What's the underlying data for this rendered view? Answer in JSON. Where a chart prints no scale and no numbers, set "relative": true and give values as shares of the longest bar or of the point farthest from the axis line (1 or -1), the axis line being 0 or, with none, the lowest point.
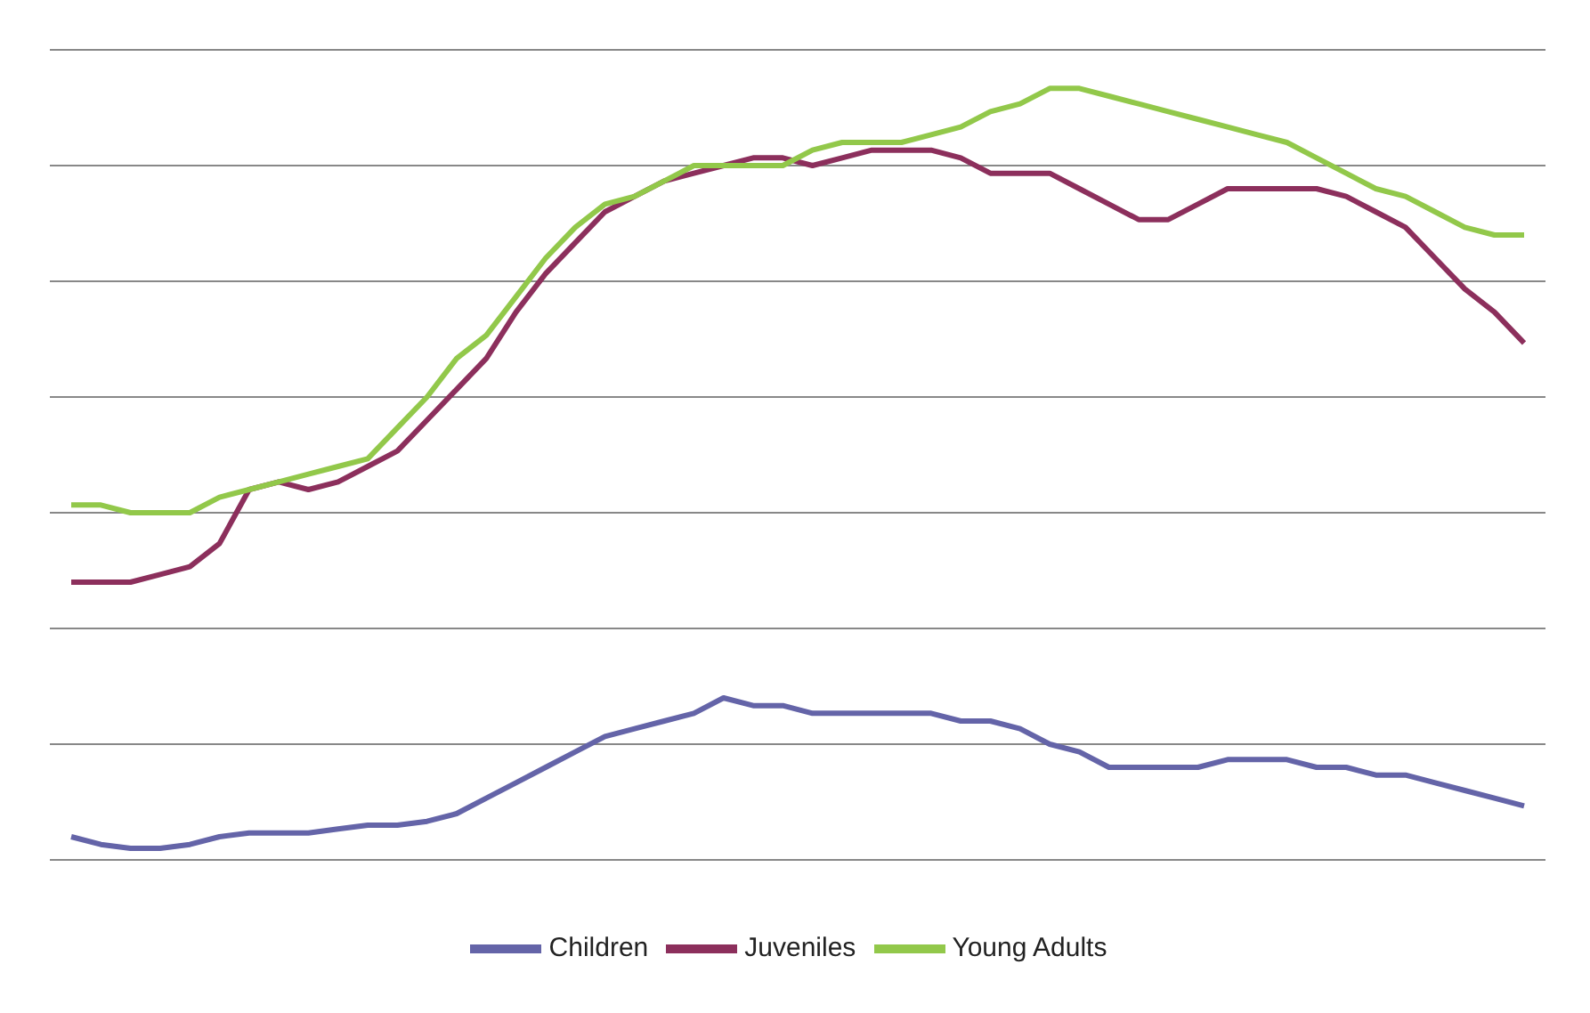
{
  "chart_data": {
    "type": "line",
    "relative": true,
    "grid": "y",
    "legend": "bottom",
    "marker": "none",
    "line_style": "solid",
    "categories": [
      null,
      null,
      null,
      null,
      null,
      null,
      null,
      null,
      null,
      null,
      null,
      null,
      null,
      null,
      null,
      null,
      null,
      null,
      null,
      null,
      null,
      null,
      null,
      null,
      null,
      null,
      null,
      null,
      null,
      null,
      null,
      null,
      null,
      null,
      null,
      null,
      null,
      null,
      null,
      null,
      null,
      null,
      null,
      null,
      null,
      null,
      null,
      null,
      null,
      null
    ],
    "series": [
      {
        "name": "Children",
        "color": "#6464a8",
        "values": [
          0.03,
          0.02,
          0.015,
          0.015,
          0.02,
          0.03,
          0.035,
          0.035,
          0.035,
          0.04,
          0.045,
          0.045,
          0.05,
          0.06,
          0.08,
          0.1,
          0.12,
          0.14,
          0.16,
          0.17,
          0.18,
          0.19,
          0.21,
          0.2,
          0.2,
          0.19,
          0.19,
          0.19,
          0.19,
          0.19,
          0.18,
          0.18,
          0.17,
          0.15,
          0.14,
          0.12,
          0.12,
          0.12,
          0.12,
          0.13,
          0.13,
          0.13,
          0.12,
          0.12,
          0.11,
          0.11,
          0.1,
          0.09,
          0.08,
          0.07
        ]
      },
      {
        "name": "Juveniles",
        "color": "#8c2f5c",
        "values": [
          0.36,
          0.36,
          0.36,
          0.37,
          0.38,
          0.41,
          0.48,
          0.49,
          0.48,
          0.49,
          0.51,
          0.53,
          0.57,
          0.61,
          0.65,
          0.71,
          0.76,
          0.8,
          0.84,
          0.86,
          0.88,
          0.89,
          0.9,
          0.91,
          0.91,
          0.9,
          0.91,
          0.92,
          0.92,
          0.92,
          0.91,
          0.89,
          0.89,
          0.89,
          0.87,
          0.85,
          0.83,
          0.83,
          0.85,
          0.87,
          0.87,
          0.87,
          0.87,
          0.86,
          0.84,
          0.82,
          0.78,
          0.74,
          0.71,
          0.67
        ]
      },
      {
        "name": "Young Adults",
        "color": "#92c84a",
        "values": [
          0.46,
          0.46,
          0.45,
          0.45,
          0.45,
          0.47,
          0.48,
          0.49,
          0.5,
          0.51,
          0.52,
          0.56,
          0.6,
          0.65,
          0.68,
          0.73,
          0.78,
          0.82,
          0.85,
          0.86,
          0.88,
          0.9,
          0.9,
          0.9,
          0.9,
          0.92,
          0.93,
          0.93,
          0.93,
          0.94,
          0.95,
          0.97,
          0.98,
          1.0,
          1.0,
          0.99,
          0.98,
          0.97,
          0.96,
          0.95,
          0.94,
          0.93,
          0.91,
          0.89,
          0.87,
          0.86,
          0.84,
          0.82,
          0.81,
          0.81
        ]
      }
    ]
  }
}
